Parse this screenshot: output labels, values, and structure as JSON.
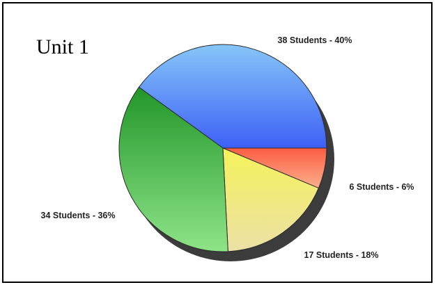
{
  "chart_data": {
    "type": "pie",
    "title": "Unit 1",
    "slices": [
      {
        "label": "38 Students - 40%",
        "value": 38,
        "percent": 40,
        "color": "#5b8ff5"
      },
      {
        "label": "6 Students - 6%",
        "value": 6,
        "percent": 6,
        "color": "#fa7a5a"
      },
      {
        "label": "17 Students - 18%",
        "value": 17,
        "percent": 18,
        "color": "#f1ea76"
      },
      {
        "label": "34 Students - 36%",
        "value": 34,
        "percent": 36,
        "color": "#4cbc4c"
      }
    ],
    "legend": "none"
  }
}
